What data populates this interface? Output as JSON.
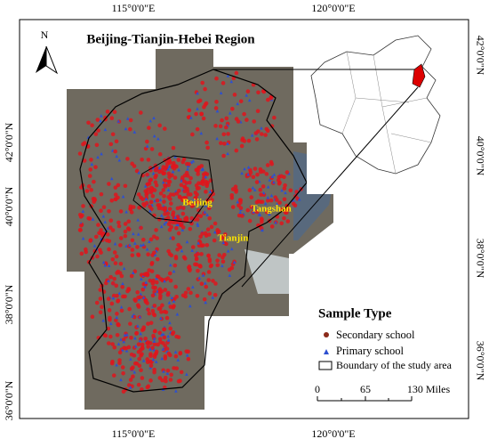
{
  "map": {
    "title": "Beijing-Tianjin-Hebei Region",
    "north": "N",
    "top_labels": [
      "115°0'0\"E",
      "120°0'0\"E"
    ],
    "bottom_labels": [
      "115°0'0\"E",
      "120°0'0\"E"
    ],
    "left_labels": [
      "42°0'0\"N",
      "40°0'0\"N",
      "38°0'0\"N",
      "36°0'0\"N"
    ],
    "right_labels": [
      "42°0'0\"N",
      "40°0'0\"N",
      "38°0'0\"N",
      "36°0'0\"N"
    ],
    "cities": [
      "Beijing",
      "Tianjin",
      "Tangshan"
    ],
    "legend": {
      "title": "Sample Type",
      "items": [
        "Secondary school",
        "Primary school",
        "Boundary of the study area"
      ]
    },
    "scale": {
      "labels": [
        "0",
        "65",
        "130 Miles"
      ]
    }
  }
}
